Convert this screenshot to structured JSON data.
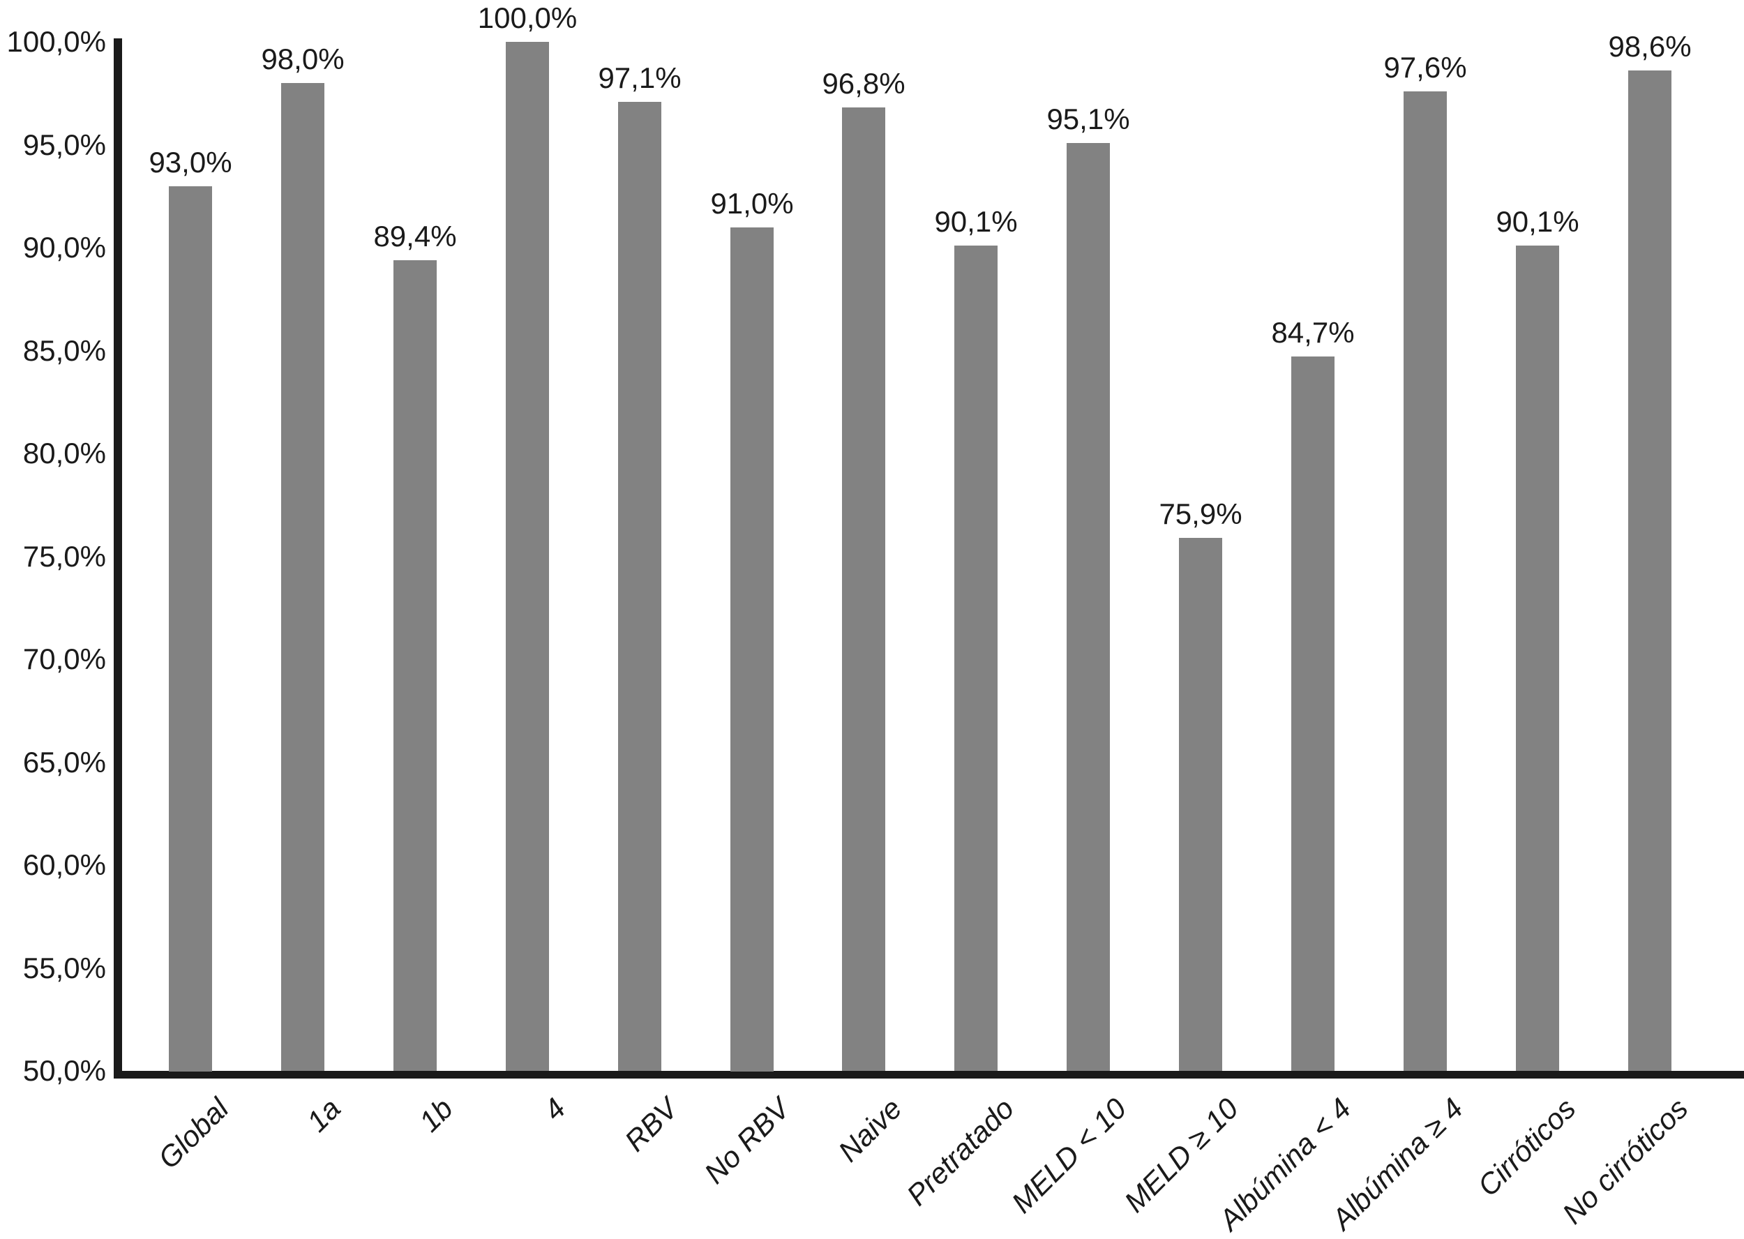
{
  "chart_data": {
    "type": "bar",
    "title": "",
    "xlabel": "",
    "ylabel": "",
    "categories": [
      "Global",
      "1a",
      "1b",
      "4",
      "RBV",
      "No RBV",
      "Naive",
      "Pretratado",
      "MELD < 10",
      "MELD ≥ 10",
      "Albúmina < 4",
      "Albúmina ≥ 4",
      "Cirróticos",
      "No cirróticos"
    ],
    "values": [
      93.0,
      98.0,
      89.4,
      100.0,
      97.1,
      91.0,
      96.8,
      90.1,
      95.1,
      75.9,
      84.7,
      97.6,
      90.1,
      98.6
    ],
    "value_labels": [
      "93,0%",
      "98,0%",
      "89,4%",
      "100,0%",
      "97,1%",
      "91,0%",
      "96,8%",
      "90,1%",
      "95,1%",
      "75,9%",
      "84,7%",
      "97,6%",
      "90,1%",
      "98,6%"
    ],
    "ylim": [
      50,
      100
    ],
    "ytick_step": 5,
    "ytick_labels": [
      "100,0%",
      "95,0%",
      "90,0%",
      "85,0%",
      "80,0%",
      "75,0%",
      "70,0%",
      "65,0%",
      "60,0%",
      "55,0%",
      "50,0%"
    ],
    "grid": false,
    "legend": null,
    "decimal_separator": ",",
    "bar_color": "#828282",
    "axis_color": "#1a1a1a",
    "text_color": "#1a1a1a",
    "background_color": "#ffffff"
  }
}
